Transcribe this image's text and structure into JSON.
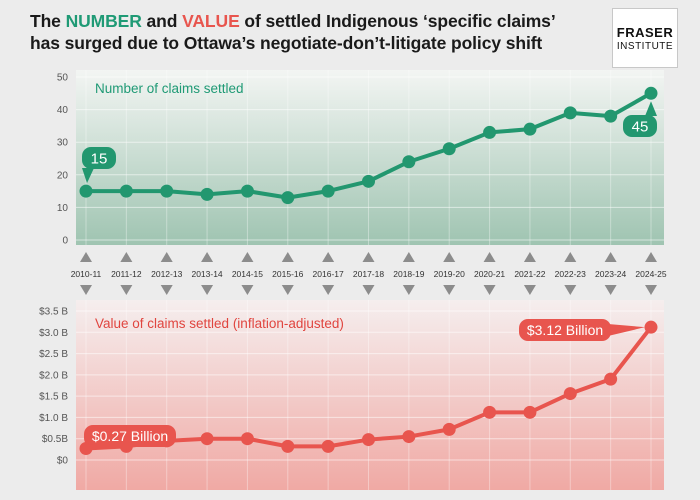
{
  "title": {
    "line1_pre": "The ",
    "line1_hl1": "NUMBER",
    "line1_mid": " and ",
    "line1_hl2": "VALUE",
    "line1_post": " of settled Indigenous ‘specific claims’",
    "line2": "has surged due to Ottawa’s negotiate-don’t-litigate policy shift"
  },
  "logo": {
    "line1": "FRASER",
    "line2": "INSTITUTE"
  },
  "colors": {
    "green": "#22976f",
    "green_label": "#1f9a75",
    "red": "#e8554e",
    "red_label": "#e0453f",
    "arrow": "#8c8c8c",
    "axis_text": "#555555"
  },
  "chart_data": [
    {
      "type": "line",
      "label": "Number of claims settled",
      "x": [
        "2010-11",
        "2011-12",
        "2012-13",
        "2013-14",
        "2014-15",
        "2015-16",
        "2016-17",
        "2017-18",
        "2018-19",
        "2019-20",
        "2020-21",
        "2021-22",
        "2022-23",
        "2023-24",
        "2024-25"
      ],
      "y": [
        15,
        15,
        15,
        14,
        15,
        13,
        15,
        18,
        24,
        28,
        33,
        34,
        39,
        38,
        45
      ],
      "ylim": [
        0,
        50
      ],
      "yticks": [
        "0",
        "10",
        "20",
        "30",
        "40",
        "50"
      ],
      "annotations": [
        {
          "index": 0,
          "text": "15"
        },
        {
          "index": 14,
          "text": "45"
        }
      ]
    },
    {
      "type": "line",
      "label": "Value of claims settled (inflation-adjusted)",
      "x": [
        "2010-11",
        "2011-12",
        "2012-13",
        "2013-14",
        "2014-15",
        "2015-16",
        "2016-17",
        "2017-18",
        "2018-19",
        "2019-20",
        "2020-21",
        "2021-22",
        "2022-23",
        "2023-24",
        "2024-25"
      ],
      "y": [
        0.27,
        0.32,
        0.45,
        0.5,
        0.5,
        0.32,
        0.32,
        0.48,
        0.55,
        0.72,
        1.12,
        1.12,
        1.56,
        1.9,
        3.12
      ],
      "ylim": [
        0,
        3.5
      ],
      "yticks": [
        "$0",
        "$0.5B",
        "$1.0 B",
        "$1.5 B",
        "$2.0 B",
        "$2.5 B",
        "$3.0 B",
        "$3.5 B"
      ],
      "annotations": [
        {
          "index": 0,
          "text": "$0.27 Billion"
        },
        {
          "index": 14,
          "text": "$3.12 Billion"
        }
      ]
    }
  ]
}
